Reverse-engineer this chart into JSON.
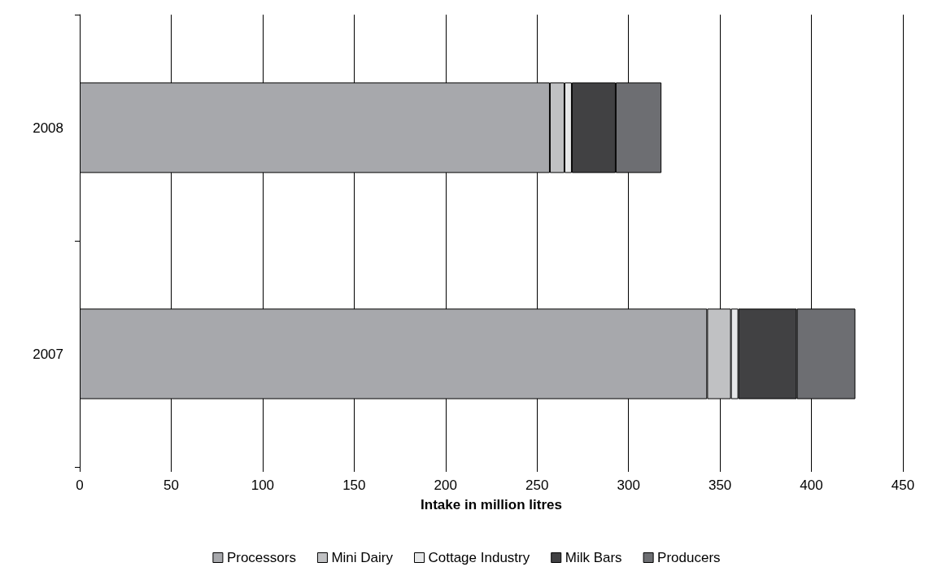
{
  "chart_data": {
    "type": "bar",
    "orientation": "horizontal",
    "stacked": true,
    "categories": [
      "2008",
      "2007"
    ],
    "series": [
      {
        "name": "Processors",
        "color": "#a7a8ac",
        "values": [
          257,
          343
        ]
      },
      {
        "name": "Mini Dairy",
        "color": "#c0c1c3",
        "values": [
          8,
          13
        ]
      },
      {
        "name": "Cottage Industry",
        "color": "#e6e7e8",
        "values": [
          4,
          4
        ]
      },
      {
        "name": "Milk Bars",
        "color": "#414143",
        "values": [
          24,
          32
        ]
      },
      {
        "name": "Producers",
        "color": "#6d6e72",
        "values": [
          25,
          32
        ]
      }
    ],
    "xlabel": "Intake in million litres",
    "xlim": [
      0,
      450
    ],
    "xticks": [
      0,
      50,
      100,
      150,
      200,
      250,
      300,
      350,
      400,
      450
    ],
    "grid": "x",
    "legend": "bottom"
  }
}
